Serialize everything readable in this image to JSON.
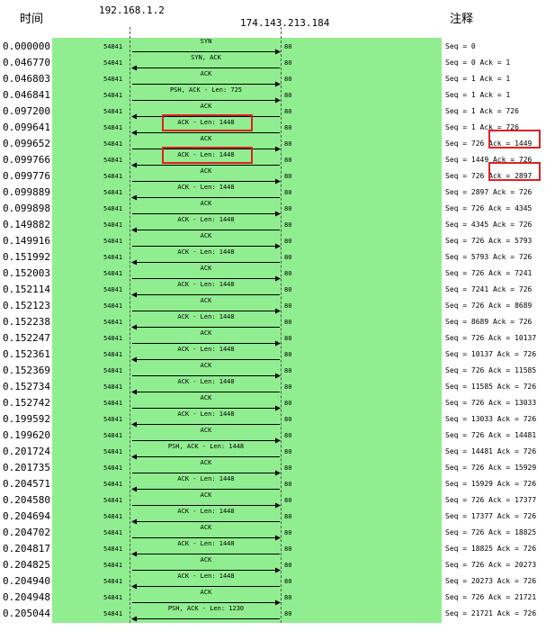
{
  "header": {
    "time_label": "时间",
    "client_ip": "192.168.1.2",
    "server_ip": "174.143.213.184",
    "note_label": "注释"
  },
  "rows": [
    {
      "time": "0.000000",
      "src_port": "54841",
      "dst_port": "80",
      "label": "SYN",
      "dir": "right",
      "note": "Seq = 0"
    },
    {
      "time": "0.046770",
      "src_port": "54841",
      "dst_port": "80",
      "label": "SYN, ACK",
      "dir": "left",
      "note": "Seq = 0 Ack = 1"
    },
    {
      "time": "0.046803",
      "src_port": "54841",
      "dst_port": "80",
      "label": "ACK",
      "dir": "right",
      "note": "Seq = 1 Ack = 1"
    },
    {
      "time": "0.046841",
      "src_port": "54841",
      "dst_port": "80",
      "label": "PSH, ACK - Len: 725",
      "dir": "right",
      "note": "Seq = 1 Ack = 1"
    },
    {
      "time": "0.097200",
      "src_port": "54841",
      "dst_port": "80",
      "label": "ACK",
      "dir": "left",
      "note": "Seq = 1 Ack = 726"
    },
    {
      "time": "0.099641",
      "src_port": "54841",
      "dst_port": "80",
      "label": "ACK - Len: 1448",
      "dir": "left",
      "note": "Seq = 1 Ack = 726",
      "hl_label": true
    },
    {
      "time": "0.099652",
      "src_port": "54841",
      "dst_port": "80",
      "label": "ACK",
      "dir": "right",
      "note": "Seq = 726 Ack = 1449",
      "hl_note": true
    },
    {
      "time": "0.099766",
      "src_port": "54841",
      "dst_port": "80",
      "label": "ACK - Len: 1448",
      "dir": "left",
      "note": "Seq = 1449 Ack = 726",
      "hl_label": true
    },
    {
      "time": "0.099776",
      "src_port": "54841",
      "dst_port": "80",
      "label": "ACK",
      "dir": "right",
      "note": "Seq = 726 Ack = 2897",
      "hl_note": true
    },
    {
      "time": "0.099889",
      "src_port": "54841",
      "dst_port": "80",
      "label": "ACK - Len: 1448",
      "dir": "left",
      "note": "Seq = 2897 Ack = 726"
    },
    {
      "time": "0.099898",
      "src_port": "54841",
      "dst_port": "80",
      "label": "ACK",
      "dir": "right",
      "note": "Seq = 726 Ack = 4345"
    },
    {
      "time": "0.149882",
      "src_port": "54841",
      "dst_port": "80",
      "label": "ACK - Len: 1448",
      "dir": "left",
      "note": "Seq = 4345 Ack = 726"
    },
    {
      "time": "0.149916",
      "src_port": "54841",
      "dst_port": "80",
      "label": "ACK",
      "dir": "right",
      "note": "Seq = 726 Ack = 5793"
    },
    {
      "time": "0.151992",
      "src_port": "54841",
      "dst_port": "80",
      "label": "ACK - Len: 1448",
      "dir": "left",
      "note": "Seq = 5793 Ack = 726"
    },
    {
      "time": "0.152003",
      "src_port": "54841",
      "dst_port": "80",
      "label": "ACK",
      "dir": "right",
      "note": "Seq = 726 Ack = 7241"
    },
    {
      "time": "0.152114",
      "src_port": "54841",
      "dst_port": "80",
      "label": "ACK - Len: 1448",
      "dir": "left",
      "note": "Seq = 7241 Ack = 726"
    },
    {
      "time": "0.152123",
      "src_port": "54841",
      "dst_port": "80",
      "label": "ACK",
      "dir": "right",
      "note": "Seq = 726 Ack = 8689"
    },
    {
      "time": "0.152238",
      "src_port": "54841",
      "dst_port": "80",
      "label": "ACK - Len: 1448",
      "dir": "left",
      "note": "Seq = 8689 Ack = 726"
    },
    {
      "time": "0.152247",
      "src_port": "54841",
      "dst_port": "80",
      "label": "ACK",
      "dir": "right",
      "note": "Seq = 726 Ack = 10137"
    },
    {
      "time": "0.152361",
      "src_port": "54841",
      "dst_port": "80",
      "label": "ACK - Len: 1448",
      "dir": "left",
      "note": "Seq = 10137 Ack = 726"
    },
    {
      "time": "0.152369",
      "src_port": "54841",
      "dst_port": "80",
      "label": "ACK",
      "dir": "right",
      "note": "Seq = 726 Ack = 11585"
    },
    {
      "time": "0.152734",
      "src_port": "54841",
      "dst_port": "80",
      "label": "ACK - Len: 1448",
      "dir": "left",
      "note": "Seq = 11585 Ack = 726"
    },
    {
      "time": "0.152742",
      "src_port": "54841",
      "dst_port": "80",
      "label": "ACK",
      "dir": "right",
      "note": "Seq = 726 Ack = 13033"
    },
    {
      "time": "0.199592",
      "src_port": "54841",
      "dst_port": "80",
      "label": "ACK - Len: 1448",
      "dir": "left",
      "note": "Seq = 13033 Ack = 726"
    },
    {
      "time": "0.199620",
      "src_port": "54841",
      "dst_port": "80",
      "label": "ACK",
      "dir": "right",
      "note": "Seq = 726 Ack = 14481"
    },
    {
      "time": "0.201724",
      "src_port": "54841",
      "dst_port": "80",
      "label": "PSH, ACK - Len: 1448",
      "dir": "left",
      "note": "Seq = 14481 Ack = 726"
    },
    {
      "time": "0.201735",
      "src_port": "54841",
      "dst_port": "80",
      "label": "ACK",
      "dir": "right",
      "note": "Seq = 726 Ack = 15929"
    },
    {
      "time": "0.204571",
      "src_port": "54841",
      "dst_port": "80",
      "label": "ACK - Len: 1448",
      "dir": "left",
      "note": "Seq = 15929 Ack = 726"
    },
    {
      "time": "0.204580",
      "src_port": "54841",
      "dst_port": "80",
      "label": "ACK",
      "dir": "right",
      "note": "Seq = 726 Ack = 17377"
    },
    {
      "time": "0.204694",
      "src_port": "54841",
      "dst_port": "80",
      "label": "ACK - Len: 1448",
      "dir": "left",
      "note": "Seq = 17377 Ack = 726"
    },
    {
      "time": "0.204702",
      "src_port": "54841",
      "dst_port": "80",
      "label": "ACK",
      "dir": "right",
      "note": "Seq = 726 Ack = 18825"
    },
    {
      "time": "0.204817",
      "src_port": "54841",
      "dst_port": "80",
      "label": "ACK - Len: 1448",
      "dir": "left",
      "note": "Seq = 18825 Ack = 726"
    },
    {
      "time": "0.204825",
      "src_port": "54841",
      "dst_port": "80",
      "label": "ACK",
      "dir": "right",
      "note": "Seq = 726 Ack = 20273"
    },
    {
      "time": "0.204940",
      "src_port": "54841",
      "dst_port": "80",
      "label": "ACK - Len: 1448",
      "dir": "left",
      "note": "Seq = 20273 Ack = 726"
    },
    {
      "time": "0.204948",
      "src_port": "54841",
      "dst_port": "80",
      "label": "ACK",
      "dir": "right",
      "note": "Seq = 726 Ack = 21721"
    },
    {
      "time": "0.205044",
      "src_port": "54841",
      "dst_port": "80",
      "label": "PSH, ACK - Len: 1230",
      "dir": "left",
      "note": "Seq = 21721 Ack = 726"
    }
  ],
  "colors": {
    "panel": "#90ee90",
    "highlight": "#e02020",
    "arrow": "#000000"
  }
}
